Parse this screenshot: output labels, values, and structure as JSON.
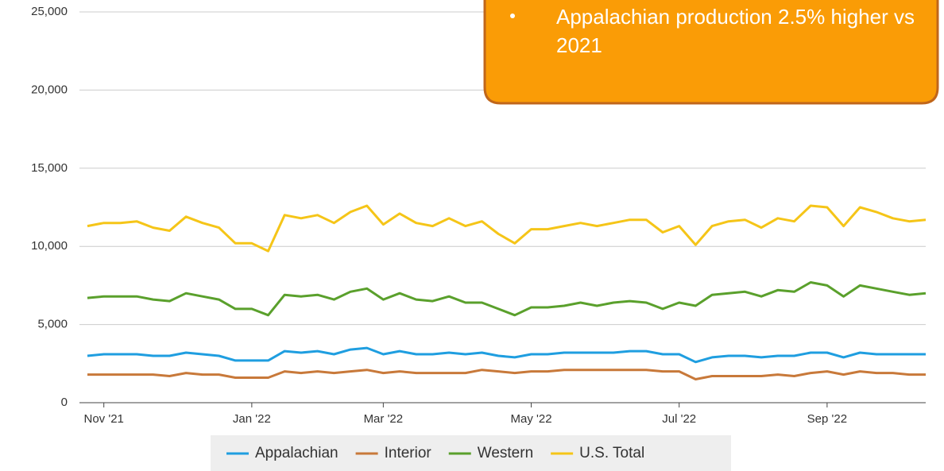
{
  "chart_data": {
    "type": "line",
    "annotation": "Appalachian production 2.5% higher vs 2021",
    "categories": [
      null,
      "Nov '21",
      null,
      null,
      null,
      null,
      null,
      null,
      null,
      null,
      "Jan '22",
      null,
      null,
      null,
      null,
      null,
      null,
      null,
      "Mar '22",
      null,
      null,
      null,
      null,
      null,
      null,
      null,
      null,
      "May '22",
      null,
      null,
      null,
      null,
      null,
      null,
      null,
      null,
      "Jul '22",
      null,
      null,
      null,
      null,
      null,
      null,
      null,
      null,
      "Sep '22",
      null,
      null,
      null,
      null,
      null,
      null
    ],
    "ylim": [
      0,
      25000
    ],
    "yticks": [
      0,
      {
        "value": 5000,
        "label": "5,000"
      },
      {
        "value": 10000,
        "label": "10,000"
      },
      {
        "value": 15000,
        "label": "15,000"
      },
      {
        "value": 20000,
        "label": "20,000"
      },
      {
        "value": 25000,
        "label": "25,000"
      }
    ],
    "grid": true,
    "legend": "bottom",
    "series": [
      {
        "name": "Appalachian",
        "color": "#1f9ee0",
        "values": [
          3000,
          3100,
          3100,
          3100,
          3000,
          3000,
          3200,
          3100,
          3000,
          2700,
          2700,
          2700,
          3300,
          3200,
          3300,
          3100,
          3400,
          3500,
          3100,
          3300,
          3100,
          3100,
          3200,
          3100,
          3200,
          3000,
          2900,
          3100,
          3100,
          3200,
          3200,
          3200,
          3200,
          3300,
          3300,
          3100,
          3100,
          2600,
          2900,
          3000,
          3000,
          2900,
          3000,
          3000,
          3200,
          3200,
          2900,
          3200,
          3100,
          3100,
          3100,
          3100
        ]
      },
      {
        "name": "Interior",
        "color": "#c8793a",
        "values": [
          1800,
          1800,
          1800,
          1800,
          1800,
          1700,
          1900,
          1800,
          1800,
          1600,
          1600,
          1600,
          2000,
          1900,
          2000,
          1900,
          2000,
          2100,
          1900,
          2000,
          1900,
          1900,
          1900,
          1900,
          2100,
          2000,
          1900,
          2000,
          2000,
          2100,
          2100,
          2100,
          2100,
          2100,
          2100,
          2000,
          2000,
          1500,
          1700,
          1700,
          1700,
          1700,
          1800,
          1700,
          1900,
          2000,
          1800,
          2000,
          1900,
          1900,
          1800,
          1800
        ]
      },
      {
        "name": "Western",
        "color": "#5aa02c",
        "values": [
          6700,
          6800,
          6800,
          6800,
          6600,
          6500,
          7000,
          6800,
          6600,
          6000,
          6000,
          5600,
          6900,
          6800,
          6900,
          6600,
          7100,
          7300,
          6600,
          7000,
          6600,
          6500,
          6800,
          6400,
          6400,
          6000,
          5600,
          6100,
          6100,
          6200,
          6400,
          6200,
          6400,
          6500,
          6400,
          6000,
          6400,
          6200,
          6900,
          7000,
          7100,
          6800,
          7200,
          7100,
          7700,
          7500,
          6800,
          7500,
          7300,
          7100,
          6900,
          7000
        ]
      },
      {
        "name": "U.S. Total",
        "color": "#f5c518",
        "values": [
          11300,
          11500,
          11500,
          11600,
          11200,
          11000,
          11900,
          11500,
          11200,
          10200,
          10200,
          9700,
          12000,
          11800,
          12000,
          11500,
          12200,
          12600,
          11400,
          12100,
          11500,
          11300,
          11800,
          11300,
          11600,
          10800,
          10200,
          11100,
          11100,
          11300,
          11500,
          11300,
          11500,
          11700,
          11700,
          10900,
          11300,
          10100,
          11300,
          11600,
          11700,
          11200,
          11800,
          11600,
          12600,
          12500,
          11300,
          12500,
          12200,
          11800,
          11600,
          11700
        ]
      }
    ]
  }
}
